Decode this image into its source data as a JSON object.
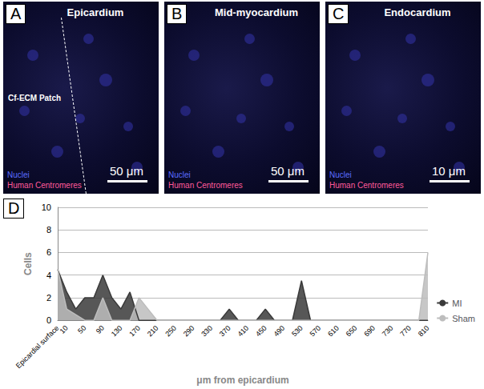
{
  "panels": [
    {
      "letter": "A",
      "title": "Epicardium",
      "labels": [
        "Nuclei",
        "Human Centromeres"
      ],
      "scale_bar": "50 μm",
      "annotation": "Cf-ECM Patch"
    },
    {
      "letter": "B",
      "title": "Mid-myocardium",
      "labels": [
        "Nuclei",
        "Human Centromeres"
      ],
      "scale_bar": "50 μm"
    },
    {
      "letter": "C",
      "title": "Endocardium",
      "labels": [
        "Nuclei",
        "Human Centromeres"
      ],
      "scale_bar": "10 μm"
    }
  ],
  "chart_data": {
    "type": "line",
    "title": "D",
    "xlabel": "μm from epicardium",
    "ylabel": "Cells",
    "categories": [
      "Epicardial surface",
      "10",
      null,
      "50",
      null,
      "90",
      null,
      "130",
      null,
      "170",
      null,
      "210",
      null,
      "250",
      null,
      "290",
      null,
      "330",
      null,
      "370",
      null,
      "410",
      null,
      "450",
      null,
      "490",
      null,
      "530",
      null,
      "570",
      null,
      "610",
      null,
      "650",
      null,
      "690",
      null,
      "730",
      null,
      "770",
      null,
      "810"
    ],
    "series": [
      {
        "name": "MI",
        "color": "#3a3a3a",
        "type": "area",
        "values": [
          4.5,
          2.5,
          1,
          2,
          2,
          4,
          2,
          1,
          2.5,
          0,
          0,
          0,
          0,
          0,
          0,
          0,
          0,
          0,
          0,
          1,
          0,
          0,
          0,
          1,
          0,
          0,
          0,
          3.5,
          0,
          0,
          0,
          0,
          0,
          0,
          0,
          0,
          0,
          0,
          0,
          0,
          0,
          0
        ]
      },
      {
        "name": "Sham",
        "color": "#bdbdbd",
        "type": "area",
        "values": [
          4.5,
          1,
          0.5,
          0,
          0,
          2,
          0,
          0,
          0,
          2,
          1,
          0,
          0,
          0,
          0,
          0,
          0,
          0,
          0,
          0,
          0,
          0,
          0,
          0,
          0,
          0,
          0,
          0,
          0,
          0,
          0,
          0,
          0,
          0,
          0,
          0,
          0,
          0,
          0,
          0,
          0,
          6
        ]
      }
    ],
    "ylim": [
      0,
      10
    ],
    "yticks": [
      0,
      2,
      4,
      6,
      8,
      10
    ],
    "grid": true,
    "legend": "lower right"
  }
}
